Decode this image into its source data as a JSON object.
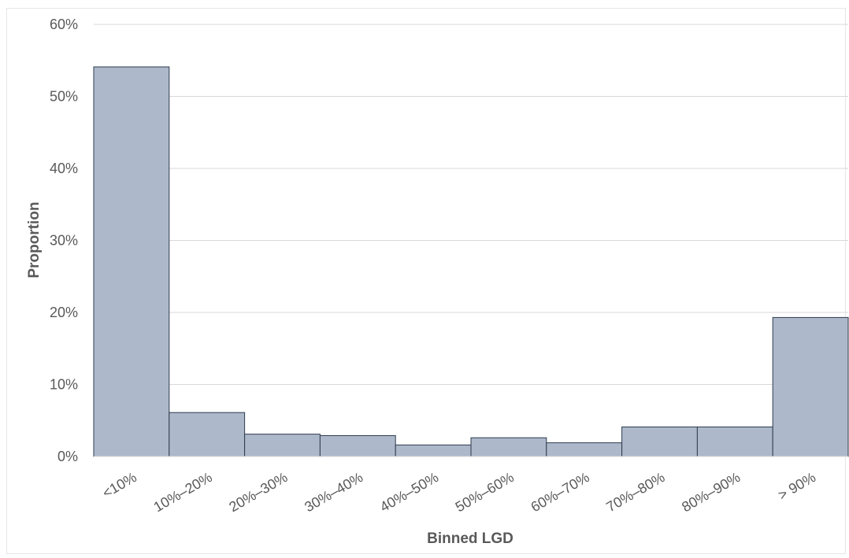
{
  "chart_data": {
    "type": "bar",
    "title": "",
    "xlabel": "Binned LGD",
    "ylabel": "Proportion",
    "categories": [
      "<10%",
      "10%–20%",
      "20%–30%",
      "30%–40%",
      "40%–50%",
      "50%–60%",
      "60%–70%",
      "70%–80%",
      "80%–90%",
      "> 90%"
    ],
    "values": [
      54.1,
      6.1,
      3.1,
      2.9,
      1.6,
      2.6,
      1.9,
      4.1,
      4.1,
      19.3
    ],
    "ylim": [
      0,
      60
    ],
    "yticks": [
      0,
      10,
      20,
      30,
      40,
      50,
      60
    ],
    "ytick_suffix": "%",
    "grid": true,
    "bar_color": "#adb9ca",
    "bar_edge_color": "#2e3b4e"
  }
}
